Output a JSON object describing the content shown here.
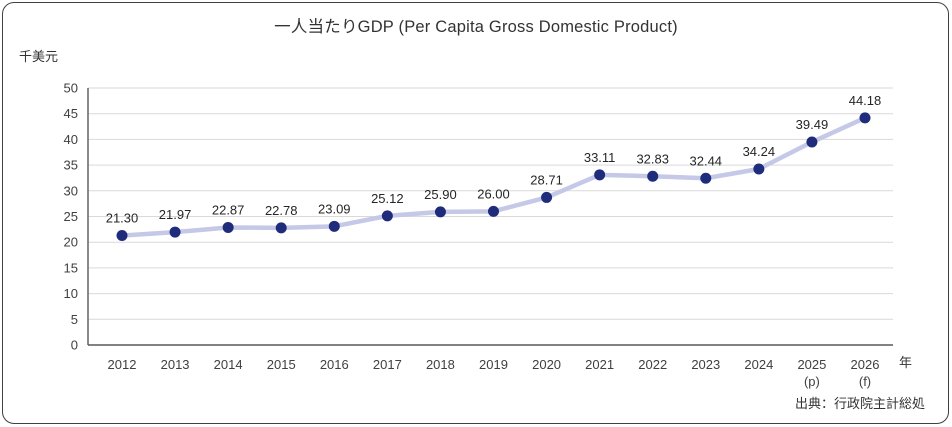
{
  "title": "一人当たりGDP (Per Capita Gross Domestic Product)",
  "y_unit_label": "千美元",
  "x_axis_suffix": "年",
  "source": "出典：行政院主計総処",
  "chart_data": {
    "type": "line",
    "title": "一人当たりGDP (Per Capita Gross Domestic Product)",
    "ylabel": "千美元",
    "xlabel": "年",
    "categories": [
      "2012",
      "2013",
      "2014",
      "2015",
      "2016",
      "2017",
      "2018",
      "2019",
      "2020",
      "2021",
      "2022",
      "2023",
      "2024",
      "2025",
      "2026"
    ],
    "category_sublabels": [
      "",
      "",
      "",
      "",
      "",
      "",
      "",
      "",
      "",
      "",
      "",
      "",
      "",
      "(p)",
      "(f)"
    ],
    "values": [
      21.3,
      21.97,
      22.87,
      22.78,
      23.09,
      25.12,
      25.9,
      26.0,
      28.71,
      33.11,
      32.83,
      32.44,
      34.24,
      39.49,
      44.18
    ],
    "value_labels": [
      "21.30",
      "21.97",
      "22.87",
      "22.78",
      "23.09",
      "25.12",
      "25.90",
      "26.00",
      "28.71",
      "33.11",
      "32.83",
      "32.44",
      "34.24",
      "39.49",
      "44.18"
    ],
    "ylim": [
      0,
      50
    ],
    "yticks": [
      0,
      5,
      10,
      15,
      20,
      25,
      30,
      35,
      40,
      45,
      50
    ],
    "grid": true,
    "legend": false,
    "source": "出典：行政院主計総処",
    "colors": {
      "line": "#c5c8e6",
      "marker": "#1f2c7c",
      "grid": "#d9d9d9",
      "axis": "#595959",
      "tick_text": "#404040",
      "label_text": "#262626",
      "title_text": "#333333"
    }
  }
}
